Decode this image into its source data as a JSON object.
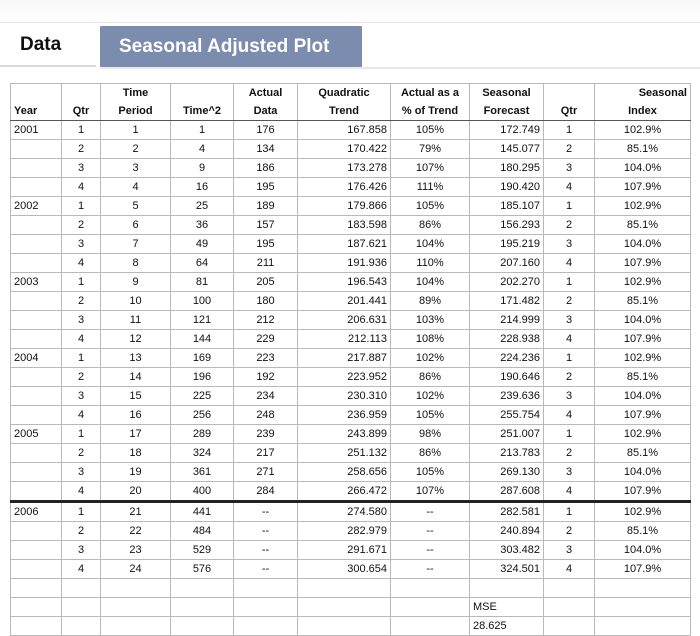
{
  "tabs": {
    "data_label": "Data",
    "plot_label": "Seasonal Adjusted Plot"
  },
  "table": {
    "headers": {
      "year": "Year",
      "qtr": "Qtr",
      "period_line1": "Time",
      "period_line2": "Period",
      "time2": "Time^2",
      "actual_line1": "Actual",
      "actual_line2": "Data",
      "trend_line1": "Quadratic",
      "trend_line2": "Trend",
      "pct_line1": "Actual as a",
      "pct_line2": "% of Trend",
      "forecast_line1": "Seasonal",
      "forecast_line2": "Forecast",
      "qtr2": "Qtr",
      "index_line1": "Seasonal",
      "index_line2": "Index"
    },
    "rows": [
      {
        "year": "2001",
        "qtr": "1",
        "period": "1",
        "time2": "1",
        "actual": "176",
        "trend": "167.858",
        "pct": "105%",
        "forecast": "172.749",
        "qtr2": "1",
        "index": "102.9%"
      },
      {
        "year": "",
        "qtr": "2",
        "period": "2",
        "time2": "4",
        "actual": "134",
        "trend": "170.422",
        "pct": "79%",
        "forecast": "145.077",
        "qtr2": "2",
        "index": "85.1%"
      },
      {
        "year": "",
        "qtr": "3",
        "period": "3",
        "time2": "9",
        "actual": "186",
        "trend": "173.278",
        "pct": "107%",
        "forecast": "180.295",
        "qtr2": "3",
        "index": "104.0%"
      },
      {
        "year": "",
        "qtr": "4",
        "period": "4",
        "time2": "16",
        "actual": "195",
        "trend": "176.426",
        "pct": "111%",
        "forecast": "190.420",
        "qtr2": "4",
        "index": "107.9%"
      },
      {
        "year": "2002",
        "qtr": "1",
        "period": "5",
        "time2": "25",
        "actual": "189",
        "trend": "179.866",
        "pct": "105%",
        "forecast": "185.107",
        "qtr2": "1",
        "index": "102.9%"
      },
      {
        "year": "",
        "qtr": "2",
        "period": "6",
        "time2": "36",
        "actual": "157",
        "trend": "183.598",
        "pct": "86%",
        "forecast": "156.293",
        "qtr2": "2",
        "index": "85.1%"
      },
      {
        "year": "",
        "qtr": "3",
        "period": "7",
        "time2": "49",
        "actual": "195",
        "trend": "187.621",
        "pct": "104%",
        "forecast": "195.219",
        "qtr2": "3",
        "index": "104.0%"
      },
      {
        "year": "",
        "qtr": "4",
        "period": "8",
        "time2": "64",
        "actual": "211",
        "trend": "191.936",
        "pct": "110%",
        "forecast": "207.160",
        "qtr2": "4",
        "index": "107.9%"
      },
      {
        "year": "2003",
        "qtr": "1",
        "period": "9",
        "time2": "81",
        "actual": "205",
        "trend": "196.543",
        "pct": "104%",
        "forecast": "202.270",
        "qtr2": "1",
        "index": "102.9%"
      },
      {
        "year": "",
        "qtr": "2",
        "period": "10",
        "time2": "100",
        "actual": "180",
        "trend": "201.441",
        "pct": "89%",
        "forecast": "171.482",
        "qtr2": "2",
        "index": "85.1%"
      },
      {
        "year": "",
        "qtr": "3",
        "period": "11",
        "time2": "121",
        "actual": "212",
        "trend": "206.631",
        "pct": "103%",
        "forecast": "214.999",
        "qtr2": "3",
        "index": "104.0%"
      },
      {
        "year": "",
        "qtr": "4",
        "period": "12",
        "time2": "144",
        "actual": "229",
        "trend": "212.113",
        "pct": "108%",
        "forecast": "228.938",
        "qtr2": "4",
        "index": "107.9%"
      },
      {
        "year": "2004",
        "qtr": "1",
        "period": "13",
        "time2": "169",
        "actual": "223",
        "trend": "217.887",
        "pct": "102%",
        "forecast": "224.236",
        "qtr2": "1",
        "index": "102.9%"
      },
      {
        "year": "",
        "qtr": "2",
        "period": "14",
        "time2": "196",
        "actual": "192",
        "trend": "223.952",
        "pct": "86%",
        "forecast": "190.646",
        "qtr2": "2",
        "index": "85.1%"
      },
      {
        "year": "",
        "qtr": "3",
        "period": "15",
        "time2": "225",
        "actual": "234",
        "trend": "230.310",
        "pct": "102%",
        "forecast": "239.636",
        "qtr2": "3",
        "index": "104.0%"
      },
      {
        "year": "",
        "qtr": "4",
        "period": "16",
        "time2": "256",
        "actual": "248",
        "trend": "236.959",
        "pct": "105%",
        "forecast": "255.754",
        "qtr2": "4",
        "index": "107.9%"
      },
      {
        "year": "2005",
        "qtr": "1",
        "period": "17",
        "time2": "289",
        "actual": "239",
        "trend": "243.899",
        "pct": "98%",
        "forecast": "251.007",
        "qtr2": "1",
        "index": "102.9%"
      },
      {
        "year": "",
        "qtr": "2",
        "period": "18",
        "time2": "324",
        "actual": "217",
        "trend": "251.132",
        "pct": "86%",
        "forecast": "213.783",
        "qtr2": "2",
        "index": "85.1%"
      },
      {
        "year": "",
        "qtr": "3",
        "period": "19",
        "time2": "361",
        "actual": "271",
        "trend": "258.656",
        "pct": "105%",
        "forecast": "269.130",
        "qtr2": "3",
        "index": "104.0%"
      },
      {
        "year": "",
        "qtr": "4",
        "period": "20",
        "time2": "400",
        "actual": "284",
        "trend": "266.472",
        "pct": "107%",
        "forecast": "287.608",
        "qtr2": "4",
        "index": "107.9%"
      },
      {
        "year": "2006",
        "qtr": "1",
        "period": "21",
        "time2": "441",
        "actual": "--",
        "trend": "274.580",
        "pct": "--",
        "forecast": "282.581",
        "qtr2": "1",
        "index": "102.9%"
      },
      {
        "year": "",
        "qtr": "2",
        "period": "22",
        "time2": "484",
        "actual": "--",
        "trend": "282.979",
        "pct": "--",
        "forecast": "240.894",
        "qtr2": "2",
        "index": "85.1%"
      },
      {
        "year": "",
        "qtr": "3",
        "period": "23",
        "time2": "529",
        "actual": "--",
        "trend": "291.671",
        "pct": "--",
        "forecast": "303.482",
        "qtr2": "3",
        "index": "104.0%"
      },
      {
        "year": "",
        "qtr": "4",
        "period": "24",
        "time2": "576",
        "actual": "--",
        "trend": "300.654",
        "pct": "--",
        "forecast": "324.501",
        "qtr2": "4",
        "index": "107.9%"
      }
    ],
    "mse": {
      "label": "MSE",
      "value": "28.625"
    }
  }
}
